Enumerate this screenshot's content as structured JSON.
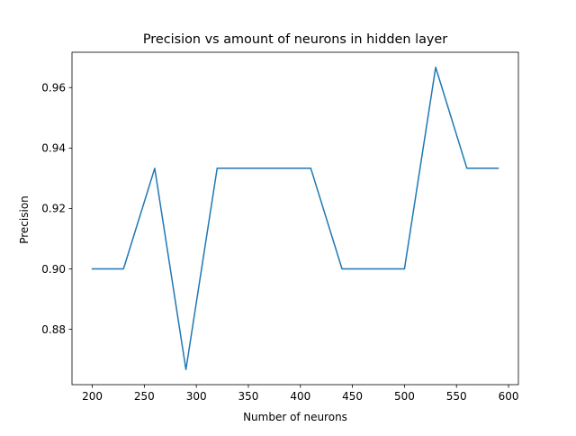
{
  "chart_data": {
    "type": "line",
    "title": "Precision vs amount of neurons in hidden layer",
    "xlabel": "Number of neurons",
    "ylabel": "Precision",
    "x": [
      200,
      230,
      260,
      290,
      320,
      350,
      380,
      410,
      440,
      470,
      500,
      530,
      560,
      590
    ],
    "series": [
      {
        "values": [
          0.9,
          0.9,
          0.9333,
          0.8667,
          0.9333,
          0.9333,
          0.9333,
          0.9333,
          0.9,
          0.9,
          0.9,
          0.9667,
          0.9333,
          0.9333
        ]
      }
    ],
    "xticks": [
      200,
      250,
      300,
      350,
      400,
      450,
      500,
      550,
      600
    ],
    "yticks": [
      0.88,
      0.9,
      0.92,
      0.94,
      0.96
    ],
    "xtick_labels": [
      "200",
      "250",
      "300",
      "350",
      "400",
      "450",
      "500",
      "550",
      "600"
    ],
    "ytick_labels": [
      "0.88",
      "0.90",
      "0.92",
      "0.94",
      "0.96"
    ],
    "xlim": [
      180.5,
      609.5
    ],
    "ylim": [
      0.8617,
      0.9717
    ],
    "grid": false,
    "line_color": "#1f77b4"
  }
}
